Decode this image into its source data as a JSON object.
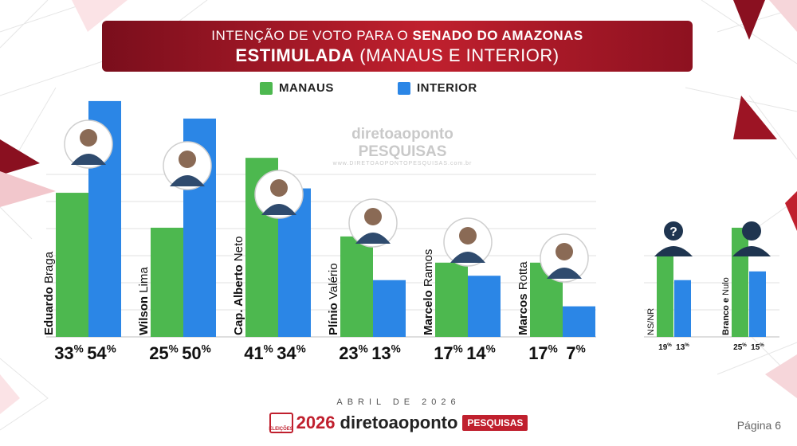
{
  "header": {
    "line1_prefix": "INTENÇÃO DE VOTO PARA O",
    "line1_bold": "SENADO DO AMAZONAS",
    "line2_bold": "ESTIMULADA",
    "line2_rest": "(MANAUS E INTERIOR)"
  },
  "legend": [
    {
      "name": "MANAUS",
      "color": "#4db84f"
    },
    {
      "name": "INTERIOR",
      "color": "#2b86e6"
    }
  ],
  "watermark": {
    "brand": "diretoaoponto PESQUISAS",
    "url": "www.DIRETOAOPONTOPESQUISAS.com.br"
  },
  "chart_data": [
    {
      "type": "bar",
      "categories": [
        "Eduardo Braga",
        "Wilson Lima",
        "Cap. Alberto Neto",
        "Plínio Valério",
        "Marcelo Ramos",
        "Marcos Rotta"
      ],
      "category_parts": [
        [
          "Eduardo",
          "Braga"
        ],
        [
          "Wilson",
          "Lima"
        ],
        [
          "Cap. Alberto",
          "Neto"
        ],
        [
          "Plínio",
          "Valério"
        ],
        [
          "Marcelo",
          "Ramos"
        ],
        [
          "Marcos",
          "Rotta"
        ]
      ],
      "series": [
        {
          "name": "MANAUS",
          "values": [
            33,
            25,
            41,
            23,
            17,
            17
          ]
        },
        {
          "name": "INTERIOR",
          "values": [
            54,
            50,
            34,
            13,
            14,
            7
          ]
        }
      ],
      "value_suffix": "%",
      "ylim": [
        0,
        60
      ],
      "grid": true
    },
    {
      "type": "bar",
      "categories": [
        "NS/NR",
        "Branco e Nulo"
      ],
      "category_parts": [
        [
          "",
          "NS/NR"
        ],
        [
          "Branco e",
          "Nulo"
        ]
      ],
      "series": [
        {
          "name": "MANAUS",
          "values": [
            19,
            25
          ]
        },
        {
          "name": "INTERIOR",
          "values": [
            13,
            15
          ]
        }
      ],
      "value_suffix": "%",
      "ylim": [
        0,
        60
      ],
      "grid": true
    }
  ],
  "colors": {
    "manaus": "#4db84f",
    "interior": "#2b86e6",
    "accent": "#c0202e",
    "dark_red": "#7a0e1c"
  },
  "icons": {
    "candidate": "person-photo-icon",
    "unknown": "question-person-icon",
    "blank": "person-silhouette-icon"
  },
  "footer": {
    "date": "ABRIL DE 2026",
    "badge": "ELEIÇÕES",
    "year": "2026",
    "brand": "diretoaoponto",
    "tag": "PESQUISAS",
    "page": "Página 6"
  }
}
